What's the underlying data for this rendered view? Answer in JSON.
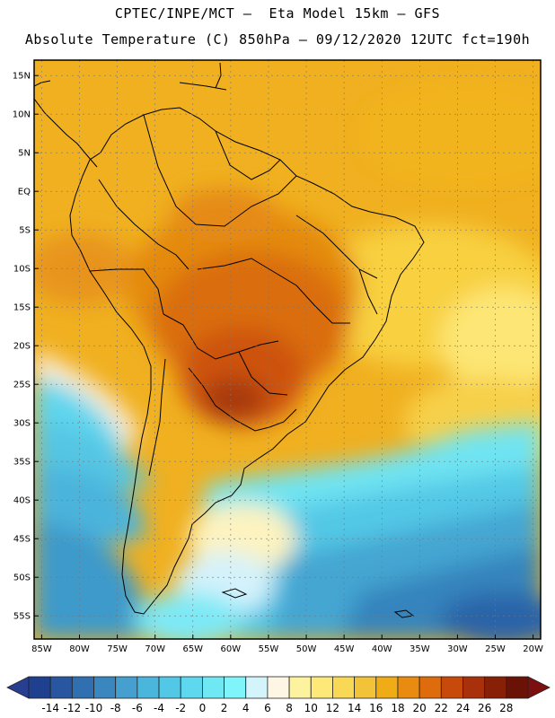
{
  "header": {
    "line1": "CPTEC/INPE/MCT –  Eta Model 15km – GFS",
    "line2": "Absolute Temperature (C) 850hPa – 09/12/2020 12UTC fct=190h"
  },
  "map": {
    "lon_range": [
      -86,
      -19
    ],
    "lat_range": [
      -58,
      17
    ],
    "lat_ticks": [
      "15N",
      "10N",
      "5N",
      "EQ",
      "5S",
      "10S",
      "15S",
      "20S",
      "25S",
      "30S",
      "35S",
      "40S",
      "45S",
      "50S",
      "55S"
    ],
    "lat_values": [
      15,
      10,
      5,
      0,
      -5,
      -10,
      -15,
      -20,
      -25,
      -30,
      -35,
      -40,
      -45,
      -50,
      -55
    ],
    "lon_ticks": [
      "85W",
      "80W",
      "75W",
      "70W",
      "65W",
      "60W",
      "55W",
      "50W",
      "45W",
      "40W",
      "35W",
      "30W",
      "25W",
      "20W"
    ],
    "lon_values": [
      -85,
      -80,
      -75,
      -70,
      -65,
      -60,
      -55,
      -50,
      -45,
      -40,
      -35,
      -30,
      -25,
      -20
    ]
  },
  "colorbar": {
    "labels": [
      "-14",
      "-12",
      "-10",
      "-8",
      "-6",
      "-4",
      "-2",
      "0",
      "2",
      "4",
      "6",
      "8",
      "10",
      "12",
      "14",
      "16",
      "18",
      "20",
      "22",
      "24",
      "26",
      "28"
    ],
    "colors": [
      "#1f3f8f",
      "#2856a0",
      "#3170b0",
      "#3a86bf",
      "#45a0cf",
      "#4bb6dc",
      "#52c8e6",
      "#5ed8ee",
      "#6fe8f4",
      "#7ff5fb",
      "#d4f4fb",
      "#fdf6e4",
      "#fdf39e",
      "#fde878",
      "#f8d855",
      "#f2c239",
      "#f0ac16",
      "#e98b10",
      "#de6b0c",
      "#c84a0a",
      "#a8300a",
      "#882008",
      "#6a1205"
    ],
    "arrow_colors": {
      "low": "#283f90",
      "high": "#7c1010"
    }
  }
}
